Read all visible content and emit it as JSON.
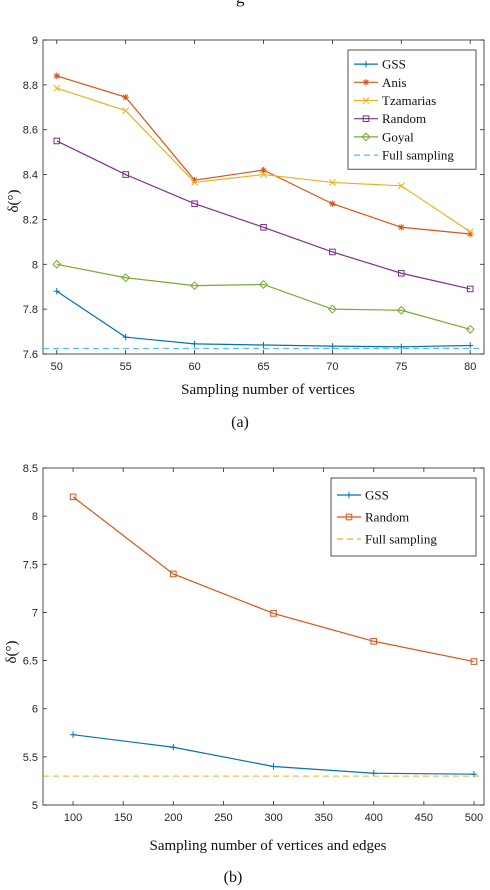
{
  "header_fragment": "g",
  "chart_data": [
    {
      "type": "line",
      "caption": "(a)",
      "xlabel": "Sampling number of vertices",
      "ylabel": "δ(°)",
      "x": [
        50,
        55,
        60,
        65,
        70,
        75,
        80
      ],
      "xticks": [
        "50",
        "55",
        "60",
        "65",
        "70",
        "75",
        "80"
      ],
      "xlim": [
        49,
        81
      ],
      "ylim": [
        7.6,
        9.0
      ],
      "yticks": [
        "7.6",
        "7.8",
        "8",
        "8.2",
        "8.4",
        "8.6",
        "8.8",
        "9"
      ],
      "legend_position": "top-right",
      "grid": false,
      "series": [
        {
          "name": "GSS",
          "color": "#0072BD",
          "marker": "plus",
          "dash": false,
          "values": [
            7.88,
            7.675,
            7.645,
            7.64,
            7.635,
            7.632,
            7.638
          ]
        },
        {
          "name": "Anis",
          "color": "#D95319",
          "marker": "star",
          "dash": false,
          "values": [
            8.84,
            8.745,
            8.375,
            8.42,
            8.27,
            8.165,
            8.135
          ]
        },
        {
          "name": "Tzamarias",
          "color": "#EDB120",
          "marker": "x",
          "dash": false,
          "values": [
            8.785,
            8.685,
            8.365,
            8.4,
            8.365,
            8.35,
            8.145
          ]
        },
        {
          "name": "Random",
          "color": "#7E2F8E",
          "marker": "square",
          "dash": false,
          "values": [
            8.55,
            8.4,
            8.27,
            8.165,
            8.055,
            7.96,
            7.89
          ]
        },
        {
          "name": "Goyal",
          "color": "#77AC30",
          "marker": "diamond",
          "dash": false,
          "values": [
            8.0,
            7.94,
            7.905,
            7.91,
            7.8,
            7.795,
            7.71
          ]
        },
        {
          "name": "Full sampling",
          "color": "#4DBEEE",
          "marker": "none",
          "dash": true,
          "values": [
            7.625,
            7.625,
            7.625,
            7.625,
            7.625,
            7.625,
            7.625
          ]
        }
      ]
    },
    {
      "type": "line",
      "caption": "(b)",
      "xlabel": "Sampling number of vertices and edges",
      "ylabel": "δ(°)",
      "x": [
        100,
        200,
        300,
        400,
        500
      ],
      "xticks": [
        "100",
        "150",
        "200",
        "250",
        "300",
        "350",
        "400",
        "450",
        "500"
      ],
      "xlim": [
        70,
        510
      ],
      "ylim": [
        5.0,
        8.5
      ],
      "yticks": [
        "5",
        "5.5",
        "6",
        "6.5",
        "7",
        "7.5",
        "8",
        "8.5"
      ],
      "legend_position": "top-right",
      "grid": false,
      "series": [
        {
          "name": "GSS",
          "color": "#0072BD",
          "marker": "plus",
          "dash": false,
          "values": [
            5.73,
            5.6,
            5.4,
            5.33,
            5.32
          ]
        },
        {
          "name": "Random",
          "color": "#D95319",
          "marker": "square",
          "dash": false,
          "values": [
            8.2,
            7.4,
            6.99,
            6.7,
            6.49
          ]
        },
        {
          "name": "Full sampling",
          "color": "#EDB120",
          "marker": "none",
          "dash": true,
          "values": [
            5.3,
            5.3,
            5.3,
            5.3,
            5.3
          ]
        }
      ]
    }
  ]
}
